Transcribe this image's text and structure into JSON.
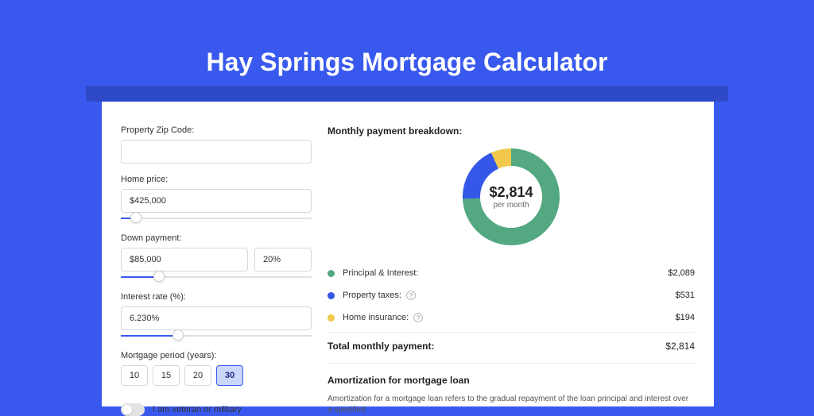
{
  "page": {
    "title": "Hay Springs Mortgage Calculator",
    "background_color": "#3959ee",
    "header_shadow_color": "#2f4ac9",
    "card_background": "#ffffff"
  },
  "form": {
    "zip": {
      "label": "Property Zip Code:",
      "value": ""
    },
    "home_price": {
      "label": "Home price:",
      "value": "$425,000",
      "slider_pct": 8
    },
    "down_payment": {
      "label": "Down payment:",
      "amount": "$85,000",
      "percent": "20%",
      "slider_pct": 20
    },
    "interest": {
      "label": "Interest rate (%):",
      "value": "6.230%",
      "slider_pct": 30
    },
    "period": {
      "label": "Mortgage period (years):",
      "options": [
        "10",
        "15",
        "20",
        "30"
      ],
      "selected": "30"
    },
    "veteran": {
      "label": "I am veteran or military",
      "value": false
    }
  },
  "breakdown": {
    "title": "Monthly payment breakdown:",
    "donut": {
      "amount": "$2,814",
      "sub": "per month",
      "segments": [
        {
          "name": "principal_interest",
          "color": "#53a882",
          "pct": 74.2
        },
        {
          "name": "property_taxes",
          "color": "#3357e6",
          "pct": 18.9
        },
        {
          "name": "home_insurance",
          "color": "#f2c94c",
          "pct": 6.9
        }
      ],
      "thickness": 22
    },
    "items": [
      {
        "label": "Principal & Interest:",
        "color": "#53a882",
        "value": "$2,089",
        "info": false
      },
      {
        "label": "Property taxes:",
        "color": "#3357e6",
        "value": "$531",
        "info": true
      },
      {
        "label": "Home insurance:",
        "color": "#f2c94c",
        "value": "$194",
        "info": true
      }
    ],
    "total": {
      "label": "Total monthly payment:",
      "value": "$2,814"
    }
  },
  "amortization": {
    "title": "Amortization for mortgage loan",
    "body": "Amortization for a mortgage loan refers to the gradual repayment of the loan principal and interest over a specified"
  }
}
